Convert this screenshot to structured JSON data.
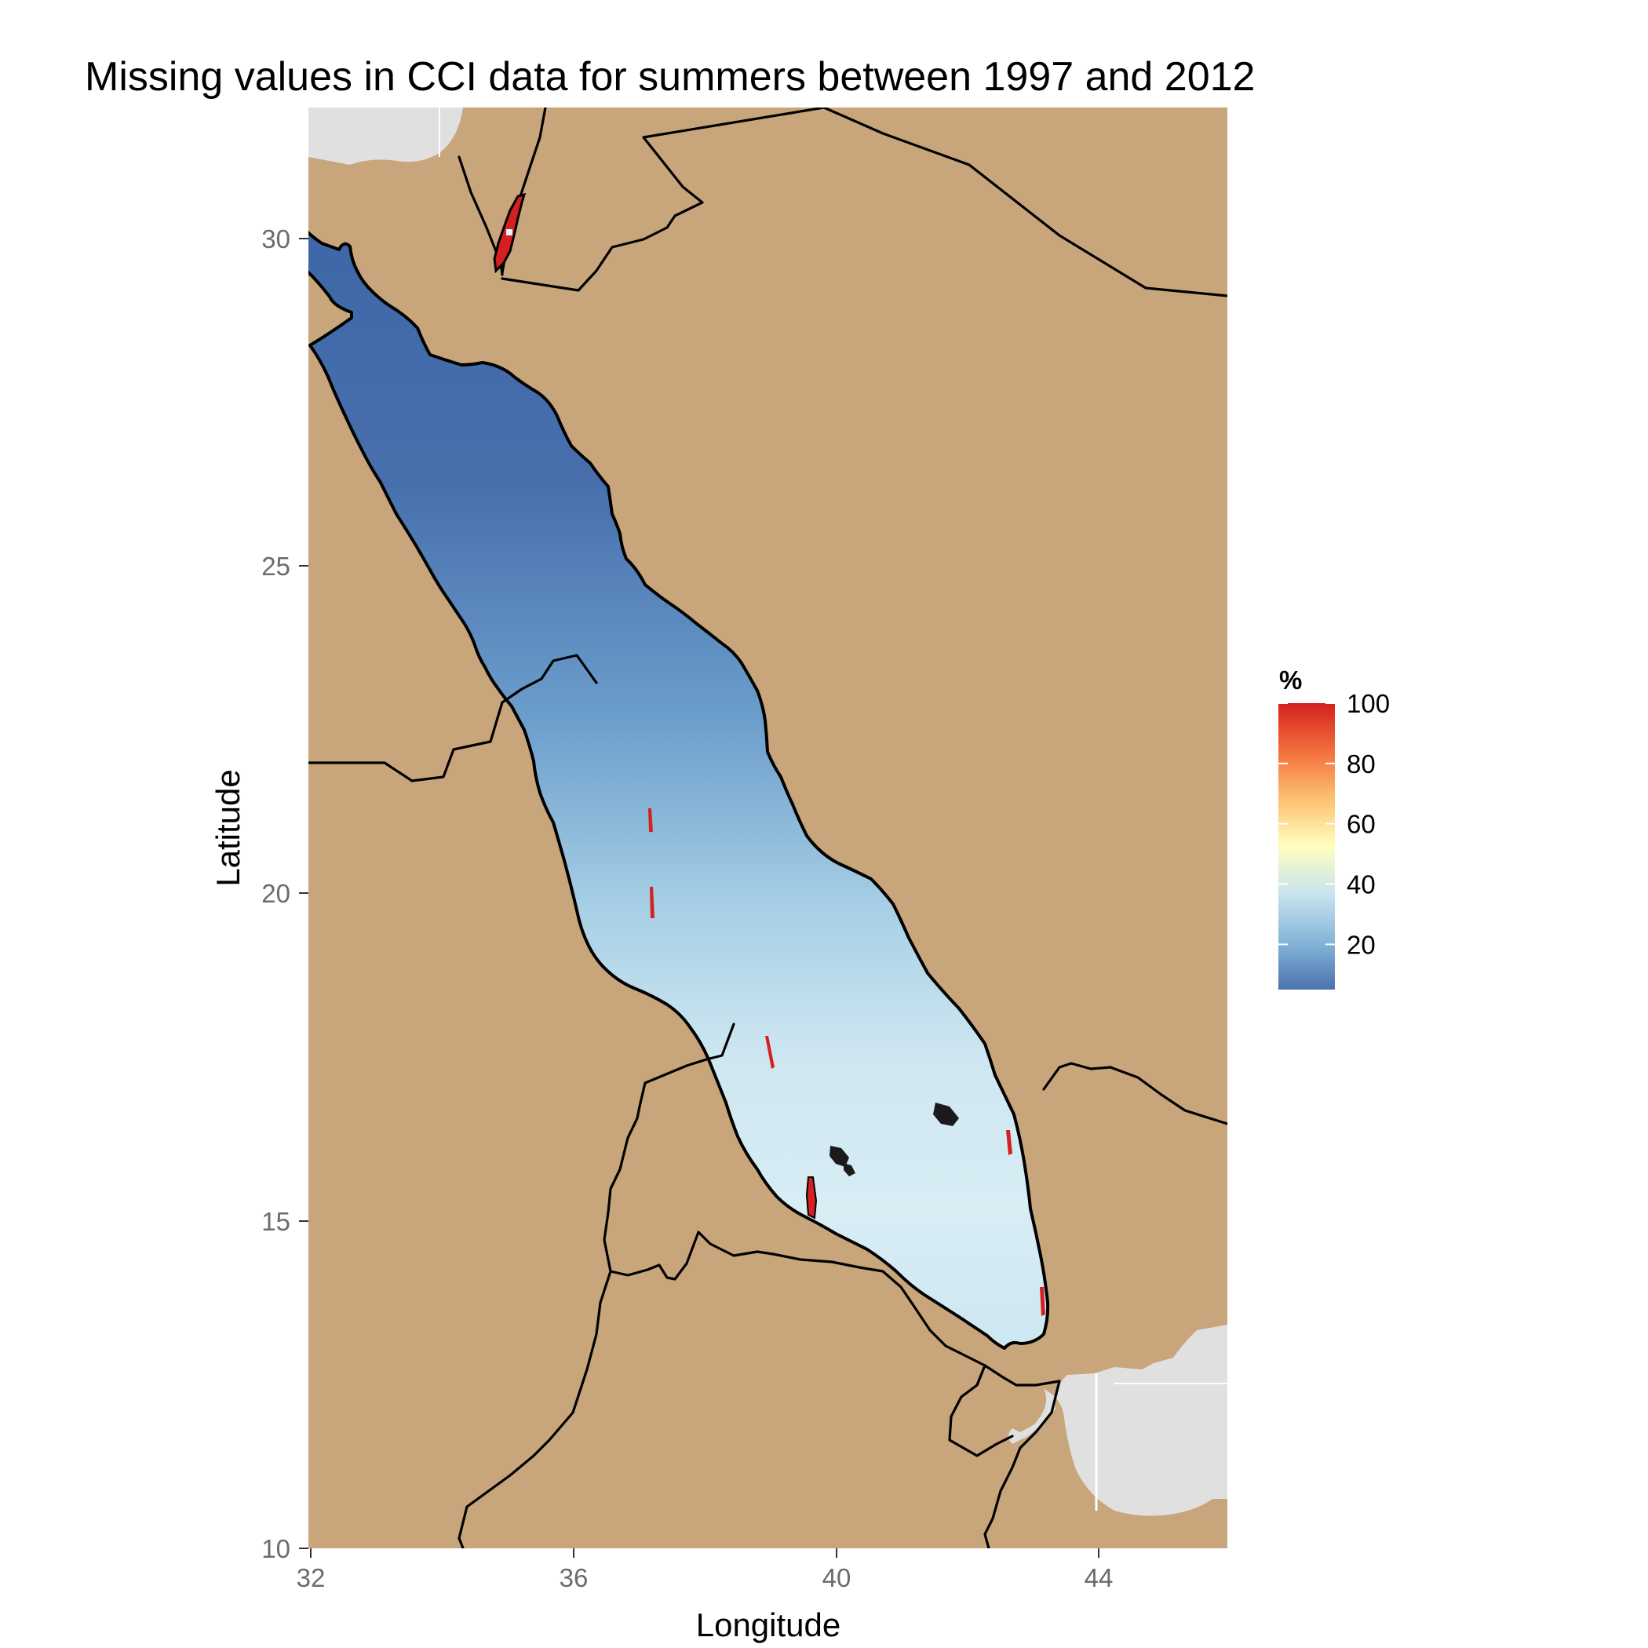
{
  "title": "Missing values in CCI data for summers between 1997 and 2012",
  "chart_data": {
    "type": "heatmap",
    "title": "Missing values in CCI data for summers between 1997 and 2012",
    "xlabel": "Longitude",
    "ylabel": "Latitude",
    "xlim": [
      32,
      46
    ],
    "ylim": [
      10,
      32
    ],
    "x_ticks": [
      32,
      36,
      40,
      44
    ],
    "y_ticks": [
      10,
      15,
      20,
      25,
      30
    ],
    "x_tick_labels": [
      "32",
      "36",
      "40",
      "44"
    ],
    "y_tick_labels": [
      "10",
      "15",
      "20",
      "25",
      "30"
    ],
    "grid": true,
    "land_color": "#c8a57a",
    "sea_background_color": "#e0e0e0",
    "legend": {
      "title": "%",
      "position": "right",
      "range": [
        5,
        100
      ],
      "breaks": [
        20,
        40,
        60,
        80,
        100
      ],
      "break_labels": [
        "20",
        "40",
        "60",
        "80",
        "100"
      ],
      "colors": [
        "#4a73ad",
        "#7fb0d6",
        "#c7e3ef",
        "#fffec0",
        "#fdbf6f",
        "#f26b3a",
        "#d32020"
      ]
    },
    "field": {
      "description_values": [
        {
          "lat": 29.5,
          "value": 8
        },
        {
          "lat": 27.0,
          "value": 5
        },
        {
          "lat": 25.0,
          "value": 9
        },
        {
          "lat": 22.5,
          "value": 14
        },
        {
          "lat": 20.0,
          "value": 22
        },
        {
          "lat": 18.0,
          "value": 30
        },
        {
          "lat": 16.0,
          "value": 32
        },
        {
          "lat": 13.0,
          "value": 28
        }
      ],
      "gulf_of_aqaba_value": 100,
      "coastal_edge_value": 100
    }
  }
}
